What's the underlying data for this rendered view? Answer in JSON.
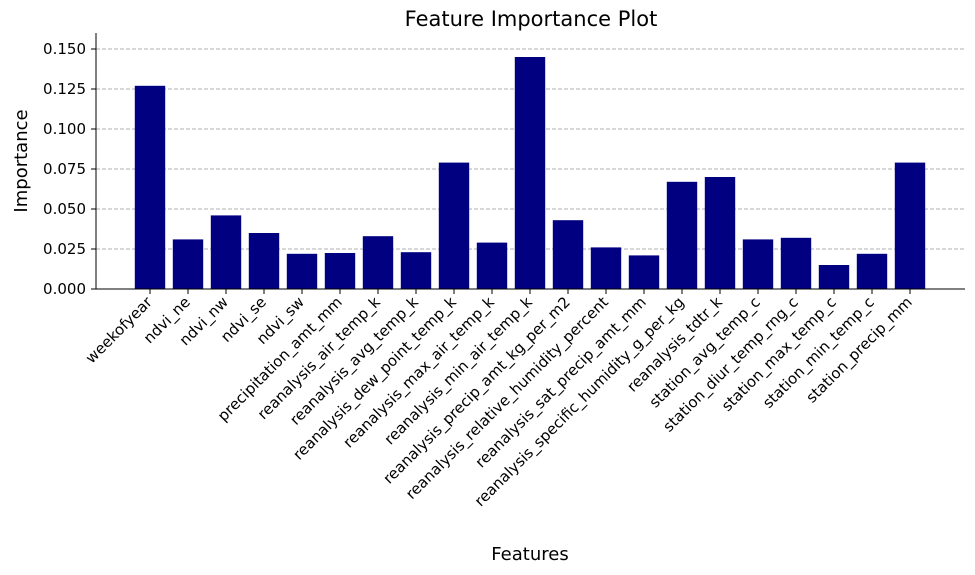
{
  "chart_data": {
    "type": "bar",
    "title": "Feature Importance Plot",
    "xlabel": "Features",
    "ylabel": "Importance",
    "ylim": [
      0,
      0.16
    ],
    "yticks": [
      "0.000",
      "0.025",
      "0.050",
      "0.075",
      "0.100",
      "0.125",
      "0.150"
    ],
    "grid": "y-dashed",
    "bar_color": "#000080",
    "categories": [
      "weekofyear",
      "ndvi_ne",
      "ndvi_nw",
      "ndvi_se",
      "ndvi_sw",
      "precipitation_amt_mm",
      "reanalysis_air_temp_k",
      "reanalysis_avg_temp_k",
      "reanalysis_dew_point_temp_k",
      "reanalysis_max_air_temp_k",
      "reanalysis_min_air_temp_k",
      "reanalysis_precip_amt_kg_per_m2",
      "reanalysis_relative_humidity_percent",
      "reanalysis_sat_precip_amt_mm",
      "reanalysis_specific_humidity_g_per_kg",
      "reanalysis_tdtr_k",
      "station_avg_temp_c",
      "station_diur_temp_rng_c",
      "station_max_temp_c",
      "station_min_temp_c",
      "station_precip_mm"
    ],
    "values": [
      0.127,
      0.031,
      0.046,
      0.035,
      0.022,
      0.0225,
      0.033,
      0.023,
      0.079,
      0.029,
      0.145,
      0.043,
      0.026,
      0.021,
      0.067,
      0.07,
      0.031,
      0.032,
      0.015,
      0.022,
      0.079
    ]
  }
}
